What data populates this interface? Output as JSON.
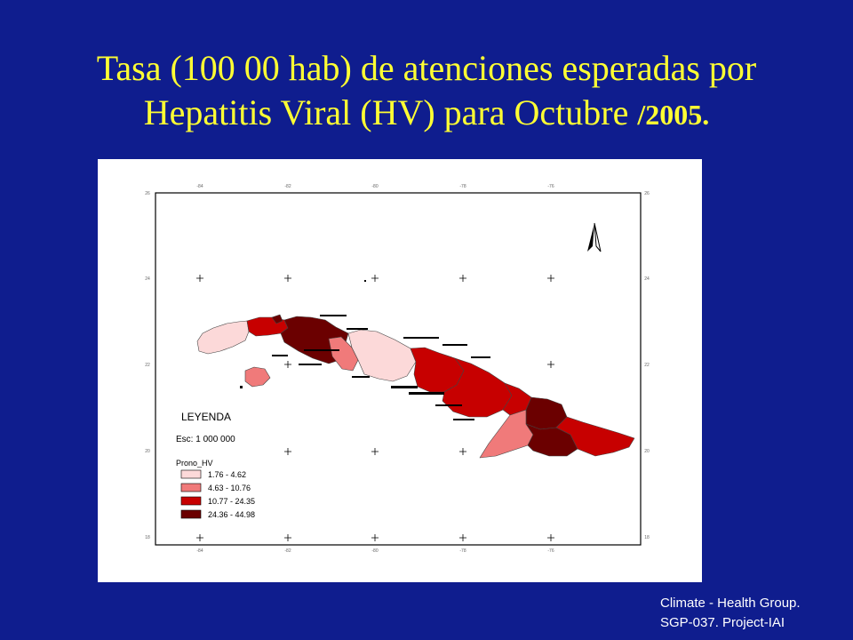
{
  "title": {
    "line1": "Tasa (100 00 hab) de atenciones esperadas por",
    "line2_main": "Hepatitis Viral (HV) para Octubre ",
    "line2_year": "/2005."
  },
  "map": {
    "longitude_ticks": [
      "-84",
      "-82",
      "-80",
      "-78",
      "-76"
    ],
    "latitude_ticks": [
      "24",
      "22",
      "20",
      "18"
    ],
    "top_left_label": "26",
    "top_right_label": "26",
    "legend": {
      "heading": "LEYENDA",
      "scale": "Esc: 1 000 000",
      "field": "Prono_HV",
      "classes": [
        {
          "label": "1.76 - 4.62",
          "color": "#fcd9d9"
        },
        {
          "label": "4.63 - 10.76",
          "color": "#f07a7a"
        },
        {
          "label": "10.77 - 24.35",
          "color": "#c70000"
        },
        {
          "label": "24.36 - 44.98",
          "color": "#6b0000"
        }
      ]
    },
    "colors": {
      "class1": "#fcd9d9",
      "class2": "#f07a7a",
      "class3": "#c70000",
      "class4": "#6b0000"
    }
  },
  "credit": {
    "line1": "Climate - Health Group.",
    "line2": "SGP-037. Project-IAI"
  }
}
